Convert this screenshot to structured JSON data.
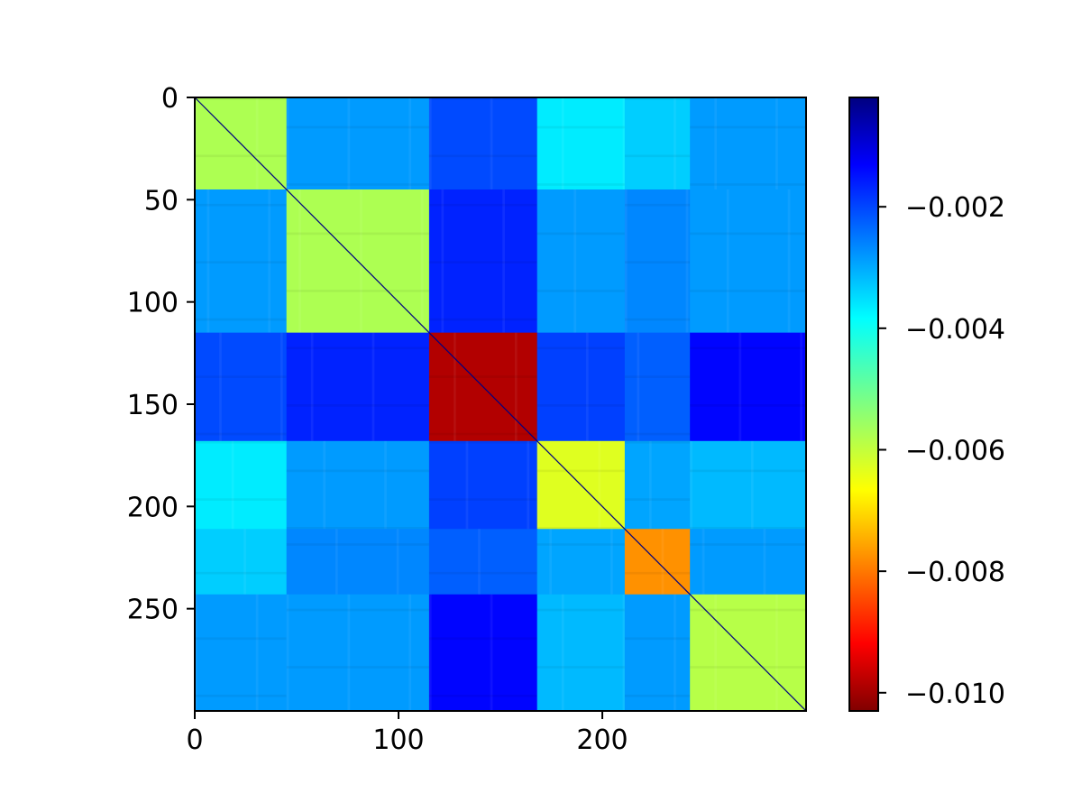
{
  "chart_data": {
    "type": "heatmap",
    "title": "",
    "xlabel": "",
    "ylabel": "",
    "size": 300,
    "xlim": [
      0,
      300
    ],
    "ylim": [
      300,
      0
    ],
    "x_ticks": [
      {
        "value": 0,
        "label": "0"
      },
      {
        "value": 100,
        "label": "100"
      },
      {
        "value": 200,
        "label": "200"
      }
    ],
    "y_ticks": [
      {
        "value": 0,
        "label": "0"
      },
      {
        "value": 50,
        "label": "50"
      },
      {
        "value": 100,
        "label": "100"
      },
      {
        "value": 150,
        "label": "150"
      },
      {
        "value": 200,
        "label": "200"
      },
      {
        "value": 250,
        "label": "250"
      }
    ],
    "colormap": "jet",
    "colorbar": {
      "vmin": -0.0103,
      "vmax": -0.0002,
      "ticks": [
        {
          "value": -0.002,
          "label": "−0.002"
        },
        {
          "value": -0.004,
          "label": "−0.004"
        },
        {
          "value": -0.006,
          "label": "−0.006"
        },
        {
          "value": -0.008,
          "label": "−0.008"
        },
        {
          "value": -0.01,
          "label": "−0.010"
        }
      ]
    },
    "blocks": [
      {
        "start": 0,
        "end": 45
      },
      {
        "start": 45,
        "end": 115
      },
      {
        "start": 115,
        "end": 168
      },
      {
        "start": 168,
        "end": 211
      },
      {
        "start": 211,
        "end": 243
      },
      {
        "start": 243,
        "end": 300
      }
    ],
    "block_values": [
      [
        -0.0057,
        -0.003,
        -0.0022,
        -0.0038,
        -0.0035,
        -0.003
      ],
      [
        -0.003,
        -0.0057,
        -0.0018,
        -0.003,
        -0.0028,
        -0.003
      ],
      [
        -0.0022,
        -0.0018,
        -0.0098,
        -0.0021,
        -0.0024,
        -0.0015
      ],
      [
        -0.0038,
        -0.003,
        -0.0021,
        -0.0062,
        -0.0031,
        -0.0033
      ],
      [
        -0.0035,
        -0.0028,
        -0.0024,
        -0.0031,
        -0.0076,
        -0.003
      ],
      [
        -0.003,
        -0.003,
        -0.0015,
        -0.0033,
        -0.003,
        -0.0058
      ]
    ],
    "diagonal_value": -0.0002
  }
}
